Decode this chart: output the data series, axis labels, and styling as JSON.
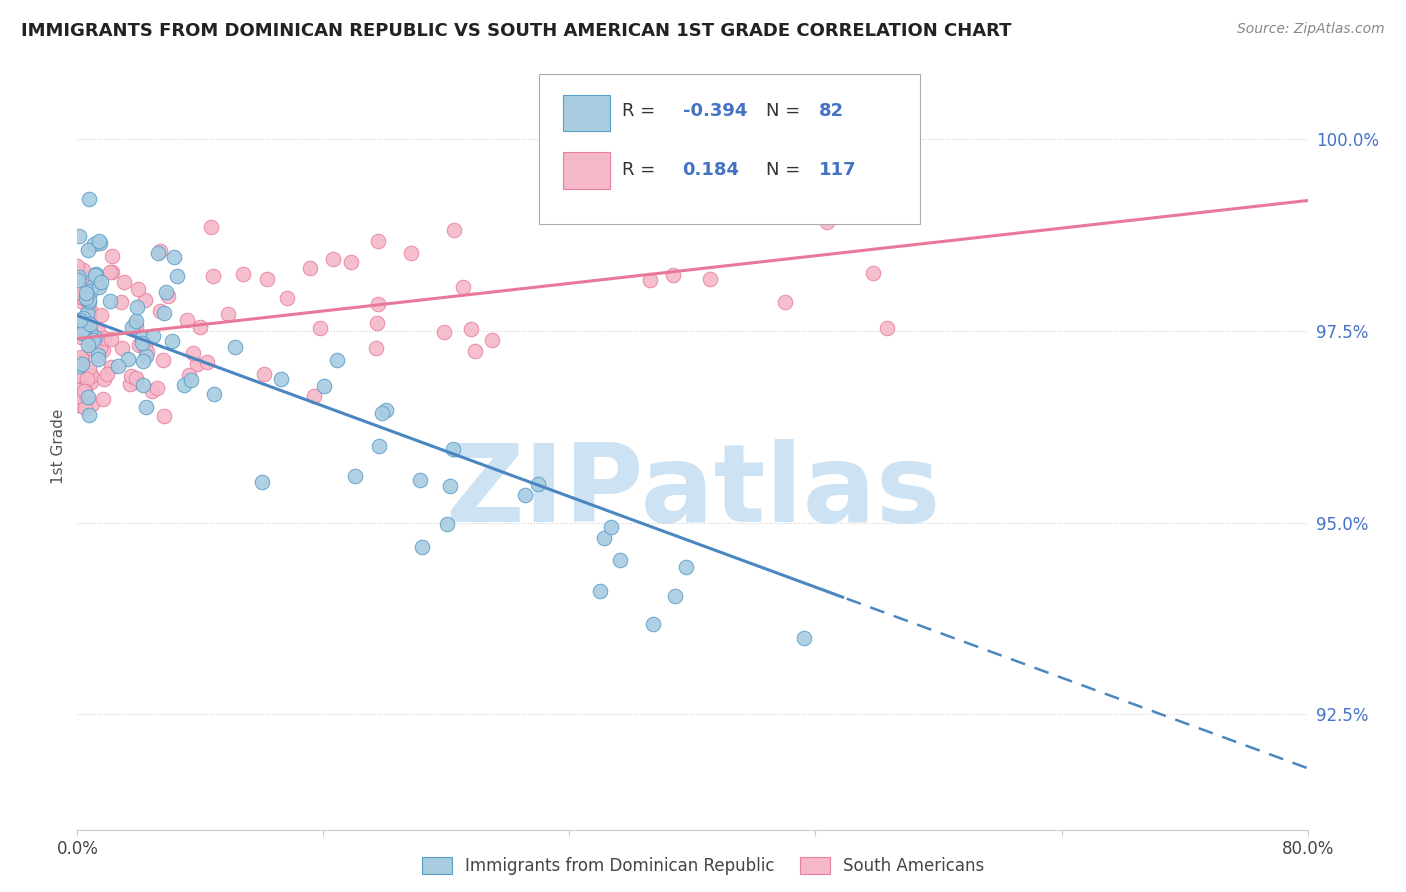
{
  "title": "IMMIGRANTS FROM DOMINICAN REPUBLIC VS SOUTH AMERICAN 1ST GRADE CORRELATION CHART",
  "source": "Source: ZipAtlas.com",
  "ylabel": "1st Grade",
  "yaxis_values": [
    100.0,
    97.5,
    95.0,
    92.5
  ],
  "legend_blue_r": "-0.394",
  "legend_blue_n": "82",
  "legend_pink_r": "0.184",
  "legend_pink_n": "117",
  "blue_color": "#a8cce0",
  "pink_color": "#f5b8c8",
  "blue_edge": "#5b9dc9",
  "pink_edge": "#e87fa0",
  "trend_blue": "#4a86c0",
  "trend_pink": "#e87898",
  "watermark": "ZIPatlas",
  "watermark_color": "#c5ddf0",
  "blue_trend_x0": 0.0,
  "blue_trend_y0": 97.7,
  "blue_trend_x1": 80.0,
  "blue_trend_y1": 91.8,
  "blue_solid_end": 50.0,
  "pink_trend_x0": 0.0,
  "pink_trend_y0": 97.4,
  "pink_trend_x1": 80.0,
  "pink_trend_y1": 99.2,
  "xmin": 0.0,
  "xmax": 80.0,
  "ymin": 91.0,
  "ymax": 101.0
}
